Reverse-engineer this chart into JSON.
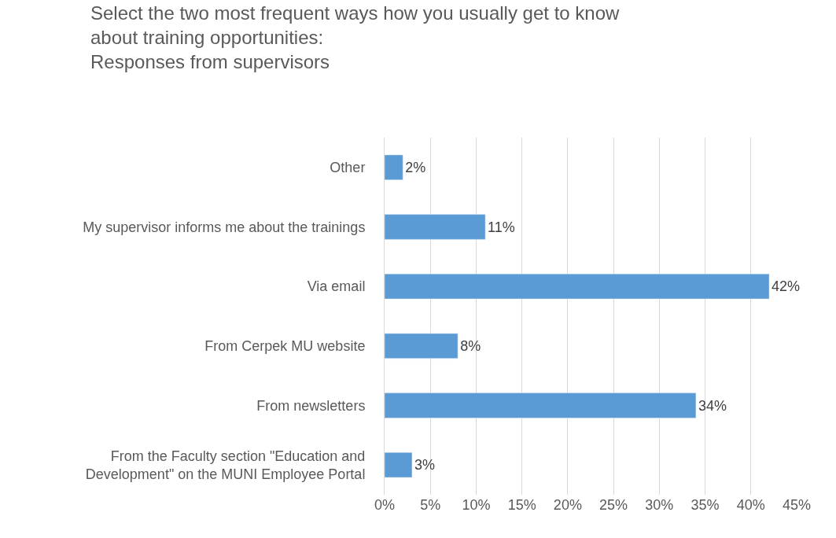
{
  "chart_data": {
    "type": "bar",
    "orientation": "horizontal",
    "title": "Select the two most frequent ways how you usually get to know\nabout training opportunities:\nResponses from supervisors",
    "categories": [
      "Other",
      "My supervisor informs me about the trainings",
      "Via email",
      "From Cerpek MU website",
      "From newsletters",
      "From the Faculty section \"Education and\nDevelopment\" on the MUNI Employee Portal"
    ],
    "values": [
      2,
      11,
      42,
      8,
      34,
      3
    ],
    "value_labels": [
      "2%",
      "11%",
      "42%",
      "8%",
      "34%",
      "3%"
    ],
    "color": "#5b9bd5",
    "xlim": [
      0,
      45
    ],
    "xticks": [
      {
        "value": 0,
        "label": "0%"
      },
      {
        "value": 5,
        "label": "5%"
      },
      {
        "value": 10,
        "label": "10%"
      },
      {
        "value": 15,
        "label": "15%"
      },
      {
        "value": 20,
        "label": "20%"
      },
      {
        "value": 25,
        "label": "25%"
      },
      {
        "value": 30,
        "label": "30%"
      },
      {
        "value": 35,
        "label": "35%"
      },
      {
        "value": 40,
        "label": "40%"
      },
      {
        "value": 45,
        "label": "45%"
      }
    ],
    "grid": "x"
  }
}
